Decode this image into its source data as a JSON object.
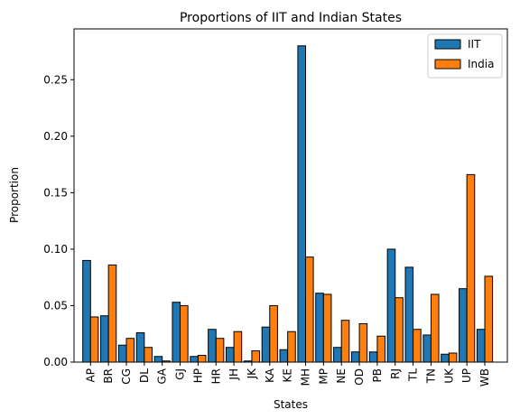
{
  "chart_data": {
    "type": "bar",
    "title": "Proportions of IIT and Indian States",
    "xlabel": "States",
    "ylabel": "Proportion",
    "categories": [
      "AP",
      "BR",
      "CG",
      "DL",
      "GA",
      "GJ",
      "HP",
      "HR",
      "JH",
      "JK",
      "KA",
      "KE",
      "MH",
      "MP",
      "NE",
      "OD",
      "PB",
      "RJ",
      "TL",
      "TN",
      "UK",
      "UP",
      "WB"
    ],
    "series": [
      {
        "name": "IIT",
        "color": "#1f77b4",
        "values": [
          0.09,
          0.041,
          0.015,
          0.026,
          0.005,
          0.053,
          0.005,
          0.029,
          0.013,
          0.001,
          0.031,
          0.011,
          0.28,
          0.061,
          0.013,
          0.009,
          0.009,
          0.1,
          0.084,
          0.024,
          0.007,
          0.065,
          0.029
        ]
      },
      {
        "name": "India",
        "color": "#ff7f0e",
        "values": [
          0.04,
          0.086,
          0.021,
          0.013,
          0.001,
          0.05,
          0.006,
          0.021,
          0.027,
          0.01,
          0.05,
          0.027,
          0.093,
          0.06,
          0.037,
          0.034,
          0.023,
          0.057,
          0.029,
          0.06,
          0.008,
          0.166,
          0.076
        ]
      }
    ],
    "yticks": [
      "0.00",
      "0.05",
      "0.10",
      "0.15",
      "0.20",
      "0.25"
    ],
    "ylim": [
      0,
      0.295
    ],
    "grid": false,
    "legend": "top-right"
  }
}
